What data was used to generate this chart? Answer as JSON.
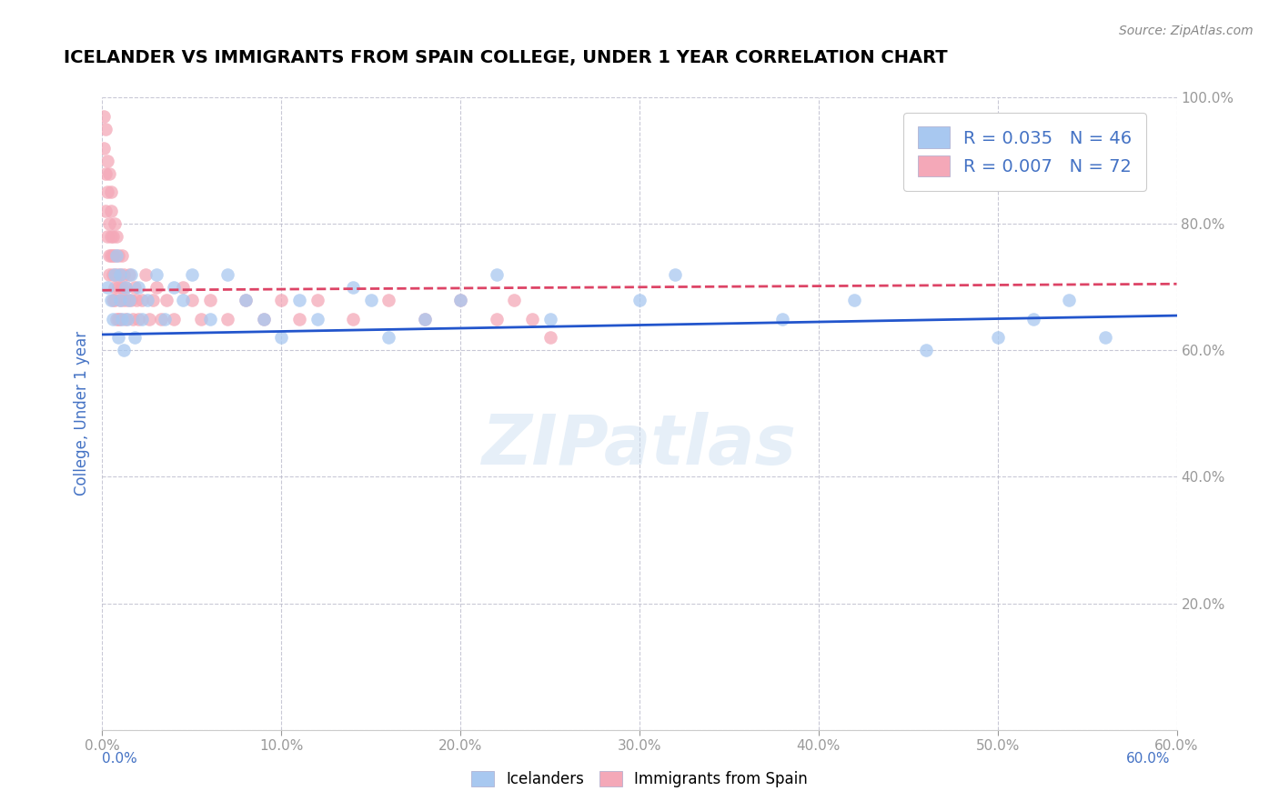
{
  "title": "ICELANDER VS IMMIGRANTS FROM SPAIN COLLEGE, UNDER 1 YEAR CORRELATION CHART",
  "source": "Source: ZipAtlas.com",
  "ylabel": "College, Under 1 year",
  "xlim": [
    0.0,
    0.6
  ],
  "ylim": [
    0.0,
    1.0
  ],
  "blue_R": 0.035,
  "blue_N": 46,
  "pink_R": 0.007,
  "pink_N": 72,
  "blue_color": "#A8C8F0",
  "pink_color": "#F4A8B8",
  "blue_line_color": "#2255CC",
  "pink_line_color": "#DD4466",
  "watermark": "ZIPatlas",
  "legend_label_blue": "R = 0.035   N = 46",
  "legend_label_pink": "R = 0.007   N = 72",
  "bottom_label_blue": "Icelanders",
  "bottom_label_pink": "Immigrants from Spain",
  "blue_x": [
    0.003,
    0.005,
    0.006,
    0.007,
    0.008,
    0.009,
    0.01,
    0.01,
    0.011,
    0.012,
    0.013,
    0.014,
    0.015,
    0.016,
    0.018,
    0.02,
    0.022,
    0.025,
    0.03,
    0.035,
    0.04,
    0.045,
    0.05,
    0.06,
    0.07,
    0.08,
    0.09,
    0.1,
    0.11,
    0.12,
    0.14,
    0.15,
    0.16,
    0.18,
    0.2,
    0.22,
    0.25,
    0.3,
    0.32,
    0.38,
    0.42,
    0.46,
    0.5,
    0.52,
    0.54,
    0.56
  ],
  "blue_y": [
    0.7,
    0.68,
    0.65,
    0.72,
    0.75,
    0.62,
    0.68,
    0.72,
    0.65,
    0.6,
    0.7,
    0.65,
    0.68,
    0.72,
    0.62,
    0.7,
    0.65,
    0.68,
    0.72,
    0.65,
    0.7,
    0.68,
    0.72,
    0.65,
    0.72,
    0.68,
    0.65,
    0.62,
    0.68,
    0.65,
    0.7,
    0.68,
    0.62,
    0.65,
    0.68,
    0.72,
    0.65,
    0.68,
    0.72,
    0.65,
    0.68,
    0.6,
    0.62,
    0.65,
    0.68,
    0.62
  ],
  "pink_x": [
    0.001,
    0.001,
    0.002,
    0.002,
    0.002,
    0.003,
    0.003,
    0.003,
    0.004,
    0.004,
    0.004,
    0.004,
    0.005,
    0.005,
    0.005,
    0.005,
    0.006,
    0.006,
    0.006,
    0.006,
    0.007,
    0.007,
    0.007,
    0.007,
    0.008,
    0.008,
    0.008,
    0.009,
    0.009,
    0.009,
    0.01,
    0.01,
    0.01,
    0.011,
    0.011,
    0.012,
    0.012,
    0.013,
    0.013,
    0.014,
    0.015,
    0.016,
    0.017,
    0.018,
    0.019,
    0.02,
    0.022,
    0.024,
    0.026,
    0.028,
    0.03,
    0.033,
    0.036,
    0.04,
    0.045,
    0.05,
    0.055,
    0.06,
    0.07,
    0.08,
    0.09,
    0.1,
    0.11,
    0.12,
    0.14,
    0.16,
    0.18,
    0.2,
    0.22,
    0.23,
    0.24,
    0.25
  ],
  "pink_y": [
    0.97,
    0.92,
    0.88,
    0.82,
    0.95,
    0.78,
    0.85,
    0.9,
    0.75,
    0.8,
    0.88,
    0.72,
    0.75,
    0.82,
    0.78,
    0.85,
    0.72,
    0.78,
    0.68,
    0.75,
    0.7,
    0.75,
    0.68,
    0.8,
    0.65,
    0.72,
    0.78,
    0.7,
    0.65,
    0.75,
    0.68,
    0.72,
    0.65,
    0.7,
    0.75,
    0.68,
    0.72,
    0.65,
    0.7,
    0.68,
    0.72,
    0.68,
    0.65,
    0.7,
    0.68,
    0.65,
    0.68,
    0.72,
    0.65,
    0.68,
    0.7,
    0.65,
    0.68,
    0.65,
    0.7,
    0.68,
    0.65,
    0.68,
    0.65,
    0.68,
    0.65,
    0.68,
    0.65,
    0.68,
    0.65,
    0.68,
    0.65,
    0.68,
    0.65,
    0.68,
    0.65,
    0.62
  ],
  "blue_trend_x": [
    0.0,
    0.6
  ],
  "blue_trend_y": [
    0.625,
    0.655
  ],
  "pink_trend_x": [
    0.0,
    0.6
  ],
  "pink_trend_y": [
    0.695,
    0.705
  ]
}
